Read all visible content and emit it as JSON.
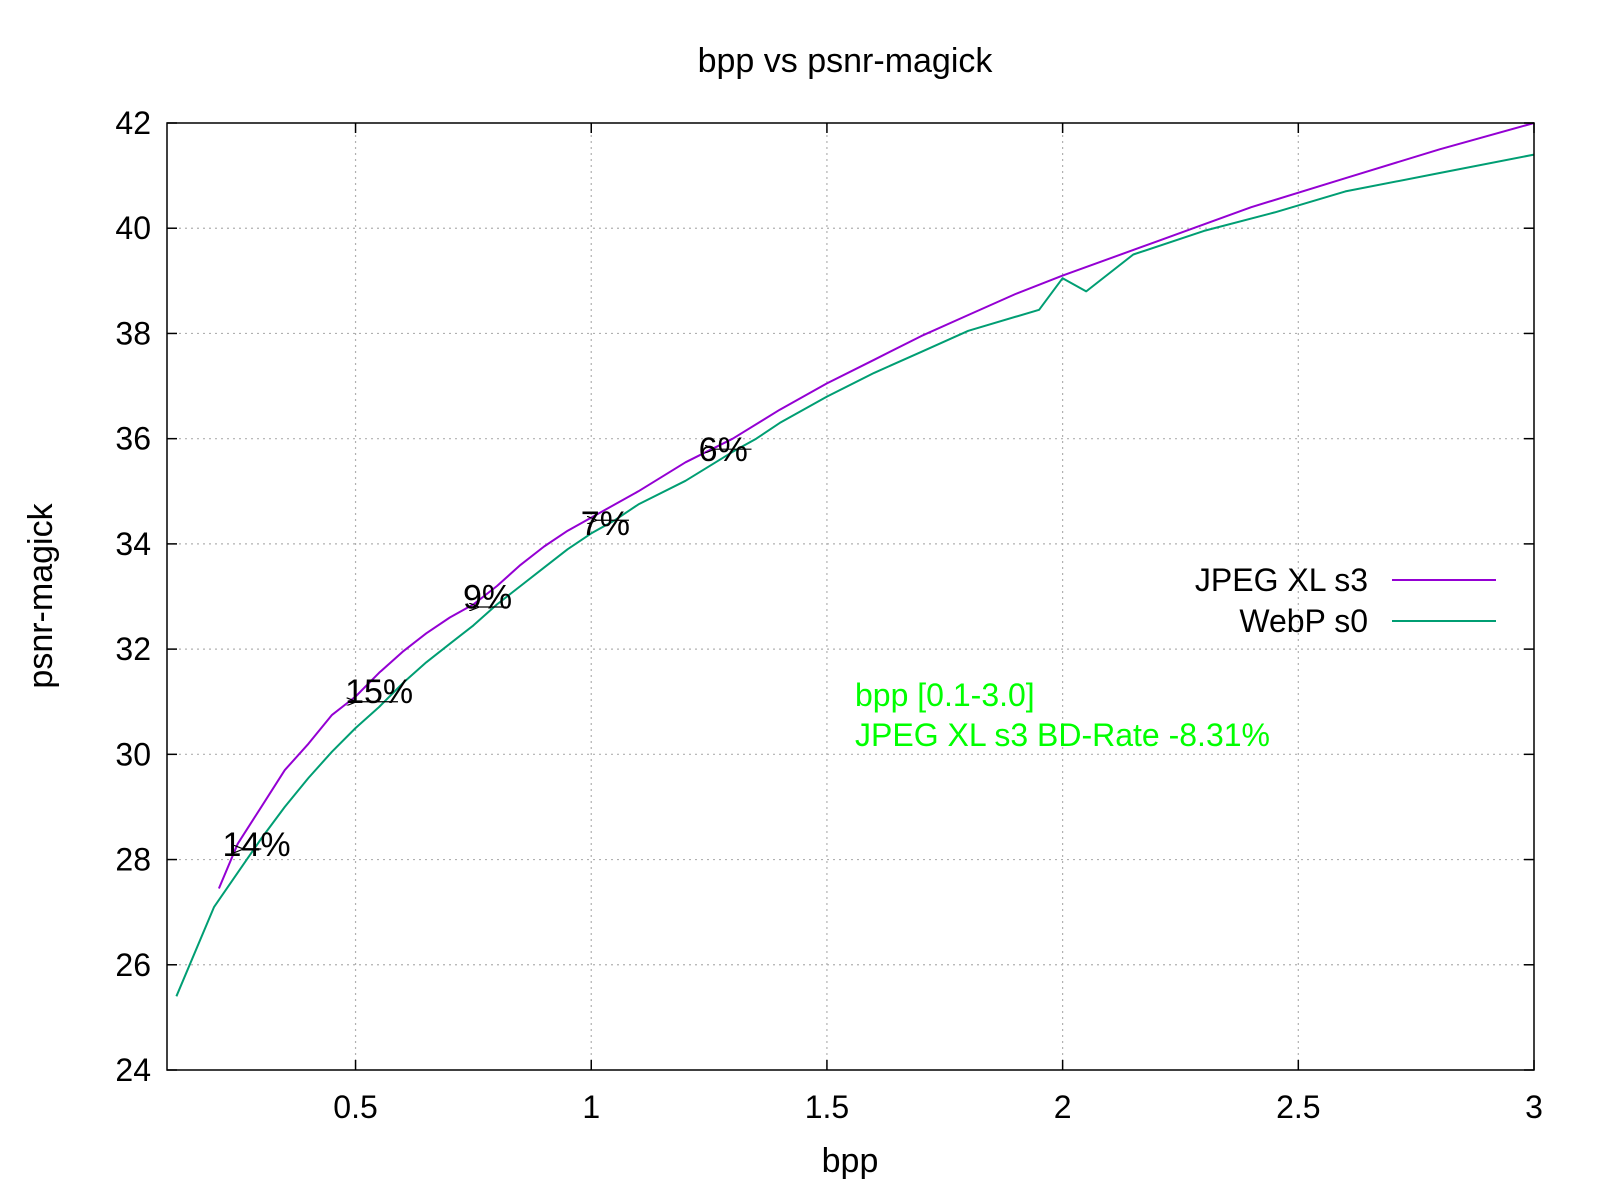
{
  "chart_data": {
    "type": "line",
    "title": "bpp vs psnr-magick",
    "xlabel": "bpp",
    "ylabel": "psnr-magick",
    "xlim": [
      0.1,
      3.0
    ],
    "ylim": [
      24,
      42
    ],
    "xticks": [
      0.5,
      1,
      1.5,
      2,
      2.5,
      3
    ],
    "xtick_labels": [
      "0.5",
      "1",
      "1.5",
      "2",
      "2.5",
      "3"
    ],
    "yticks": [
      24,
      26,
      28,
      30,
      32,
      34,
      36,
      38,
      40,
      42
    ],
    "ytick_labels": [
      "24",
      "26",
      "28",
      "30",
      "32",
      "34",
      "36",
      "38",
      "40",
      "42"
    ],
    "grid": true,
    "legend_position": "right",
    "series": [
      {
        "name": "JPEG XL s3",
        "color": "#9400d3",
        "x": [
          0.21,
          0.25,
          0.3,
          0.35,
          0.4,
          0.45,
          0.5,
          0.55,
          0.6,
          0.65,
          0.7,
          0.75,
          0.8,
          0.85,
          0.9,
          0.95,
          1.0,
          1.1,
          1.2,
          1.3,
          1.4,
          1.5,
          1.6,
          1.7,
          1.8,
          1.9,
          2.0,
          2.2,
          2.4,
          2.6,
          2.8,
          3.0
        ],
        "y": [
          27.45,
          28.3,
          29.0,
          29.7,
          30.2,
          30.75,
          31.1,
          31.55,
          31.95,
          32.3,
          32.6,
          32.85,
          33.2,
          33.6,
          33.95,
          34.25,
          34.5,
          35.0,
          35.55,
          36.0,
          36.55,
          37.05,
          37.5,
          37.95,
          38.35,
          38.75,
          39.1,
          39.75,
          40.4,
          40.95,
          41.5,
          42.0
        ]
      },
      {
        "name": "WebP s0",
        "color": "#009e73",
        "x": [
          0.12,
          0.2,
          0.25,
          0.3,
          0.35,
          0.4,
          0.45,
          0.5,
          0.55,
          0.6,
          0.65,
          0.7,
          0.75,
          0.8,
          0.85,
          0.9,
          0.95,
          1.0,
          1.05,
          1.1,
          1.2,
          1.3,
          1.35,
          1.4,
          1.5,
          1.6,
          1.7,
          1.8,
          1.95,
          2.0,
          2.05,
          2.15,
          2.3,
          2.45,
          2.6,
          2.8,
          3.0
        ],
        "y": [
          25.4,
          27.1,
          27.75,
          28.4,
          29.0,
          29.55,
          30.05,
          30.5,
          30.9,
          31.35,
          31.75,
          32.1,
          32.45,
          32.85,
          33.2,
          33.55,
          33.9,
          34.2,
          34.45,
          34.75,
          35.2,
          35.75,
          36.0,
          36.3,
          36.8,
          37.25,
          37.65,
          38.05,
          38.45,
          39.05,
          38.8,
          39.5,
          39.95,
          40.3,
          40.7,
          41.05,
          41.4
        ]
      }
    ],
    "annotations": [
      {
        "text": "14%",
        "x": 0.29,
        "y": 28.3,
        "arrow_from": 0.3,
        "arrow_to": 0.26,
        "arrow_y": 28.2
      },
      {
        "text": "15%",
        "x": 0.55,
        "y": 31.2,
        "arrow_from": 0.59,
        "arrow_to": 0.5,
        "arrow_y": 31.0
      },
      {
        "text": "9%",
        "x": 0.78,
        "y": 33.0,
        "arrow_from": 0.82,
        "arrow_to": 0.76,
        "arrow_y": 32.8
      },
      {
        "text": "7%",
        "x": 1.03,
        "y": 34.4,
        "arrow_from": 1.08,
        "arrow_to": 1.01,
        "arrow_y": 34.45
      },
      {
        "text": "6%",
        "x": 1.28,
        "y": 35.8,
        "arrow_from": 1.34,
        "arrow_to": 1.26,
        "arrow_y": 35.8
      }
    ],
    "bd_rate_text": [
      "bpp [0.1-3.0]",
      "JPEG XL s3 BD-Rate -8.31%"
    ],
    "bd_rate_color": "#00ff00"
  }
}
